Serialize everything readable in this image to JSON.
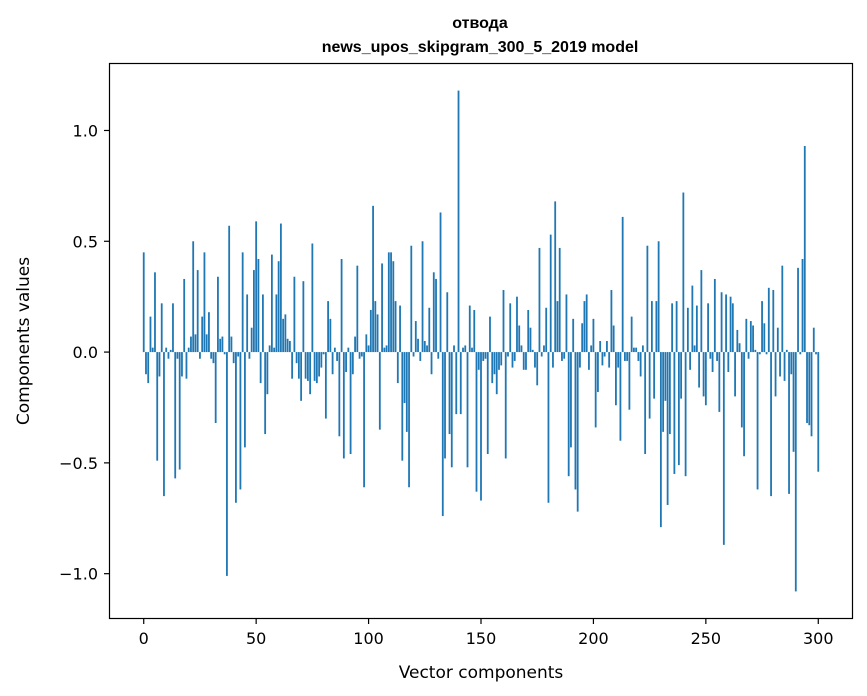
{
  "chart_data": {
    "type": "bar",
    "title": "отвода",
    "subtitle": "news_upos_skipgram_300_5_2019 model",
    "xlabel": "Vector components",
    "ylabel": "Components values",
    "xlim": [
      -15,
      315
    ],
    "ylim": [
      -1.2,
      1.3
    ],
    "xticks": [
      0,
      50,
      100,
      150,
      200,
      250,
      300
    ],
    "yticks": [
      -1.0,
      -0.5,
      0.0,
      0.5,
      1.0
    ],
    "ytick_labels": [
      "−1.0",
      "−0.5",
      "0.0",
      "0.5",
      "1.0"
    ],
    "bar_color": "#1f77b4",
    "grid": false,
    "values": [
      0.45,
      -0.1,
      -0.14,
      0.16,
      0.02,
      0.36,
      -0.49,
      -0.11,
      0.22,
      -0.65,
      0.02,
      -0.03,
      0.01,
      0.22,
      -0.57,
      -0.03,
      -0.53,
      -0.11,
      0.33,
      -0.12,
      0.02,
      0.07,
      0.5,
      0.08,
      0.37,
      -0.03,
      0.16,
      0.45,
      0.08,
      0.18,
      -0.03,
      -0.05,
      -0.32,
      0.34,
      0.06,
      0.07,
      -0.01,
      -1.01,
      0.57,
      0.07,
      -0.05,
      -0.68,
      -0.02,
      -0.62,
      0.45,
      -0.43,
      0.26,
      -0.03,
      0.11,
      0.37,
      0.59,
      0.42,
      -0.14,
      0.26,
      -0.37,
      -0.19,
      0.03,
      0.44,
      0.02,
      0.26,
      0.41,
      0.58,
      0.15,
      0.17,
      0.06,
      0.05,
      -0.12,
      0.34,
      -0.05,
      -0.12,
      -0.22,
      0.32,
      -0.12,
      -0.13,
      -0.19,
      0.49,
      -0.13,
      -0.14,
      -0.11,
      -0.07,
      -0.01,
      -0.3,
      0.23,
      0.15,
      -0.1,
      0.02,
      -0.04,
      -0.38,
      0.42,
      -0.48,
      -0.09,
      0.02,
      -0.46,
      -0.1,
      0.07,
      0.39,
      -0.03,
      -0.02,
      -0.61,
      0.08,
      0.03,
      0.19,
      0.66,
      0.23,
      0.17,
      -0.35,
      0.4,
      0.02,
      0.03,
      0.45,
      0.45,
      0.41,
      0.23,
      -0.14,
      0.21,
      -0.49,
      -0.23,
      -0.36,
      -0.61,
      0.48,
      -0.02,
      0.14,
      0.06,
      -0.04,
      0.5,
      0.05,
      0.03,
      0.2,
      -0.1,
      0.36,
      0.33,
      -0.03,
      0.63,
      -0.74,
      -0.48,
      0.27,
      -0.37,
      -0.52,
      0.03,
      -0.28,
      1.18,
      -0.28,
      0.02,
      0.03,
      -0.52,
      0.21,
      0.02,
      0.19,
      -0.63,
      -0.08,
      -0.67,
      -0.04,
      -0.03,
      -0.46,
      0.16,
      -0.14,
      -0.1,
      -0.19,
      -0.08,
      -0.06,
      0.28,
      -0.48,
      -0.02,
      0.22,
      -0.07,
      -0.04,
      0.25,
      0.12,
      0.03,
      -0.08,
      -0.08,
      0.19,
      0.11,
      0.01,
      -0.07,
      -0.15,
      0.47,
      -0.02,
      0.03,
      0.2,
      -0.68,
      0.53,
      -0.07,
      0.68,
      0.23,
      0.47,
      -0.04,
      -0.03,
      0.26,
      -0.56,
      -0.43,
      0.15,
      -0.62,
      -0.72,
      -0.07,
      0.13,
      0.23,
      0.26,
      -0.08,
      0.03,
      0.15,
      -0.34,
      -0.18,
      0.05,
      -0.06,
      -0.02,
      0.05,
      -0.07,
      0.28,
      0.12,
      -0.24,
      -0.07,
      -0.4,
      0.61,
      -0.04,
      -0.04,
      -0.26,
      0.16,
      0.02,
      0.02,
      -0.04,
      -0.11,
      0.03,
      -0.46,
      0.48,
      -0.3,
      0.23,
      -0.21,
      0.23,
      0.5,
      -0.79,
      -0.36,
      -0.22,
      -0.69,
      -0.37,
      0.22,
      -0.55,
      0.23,
      -0.51,
      -0.21,
      0.72,
      -0.56,
      0.2,
      -0.08,
      0.3,
      0.03,
      0.21,
      -0.16,
      0.37,
      -0.2,
      -0.24,
      0.22,
      -0.03,
      -0.09,
      0.33,
      -0.04,
      -0.27,
      0.27,
      -0.87,
      0.26,
      -0.09,
      0.25,
      0.22,
      -0.2,
      0.1,
      0.04,
      -0.34,
      -0.47,
      0.15,
      -0.03,
      0.14,
      0.12,
      0.01,
      -0.62,
      -0.01,
      0.23,
      0.13,
      -0.01,
      0.29,
      -0.65,
      0.28,
      -0.2,
      0.11,
      -0.11,
      0.39,
      -0.13,
      0.01,
      -0.64,
      -0.1,
      -0.45,
      -1.08,
      0.38,
      -0.01,
      0.42,
      0.93,
      -0.32,
      -0.33,
      -0.38,
      0.11,
      -0.01,
      -0.54
    ]
  }
}
